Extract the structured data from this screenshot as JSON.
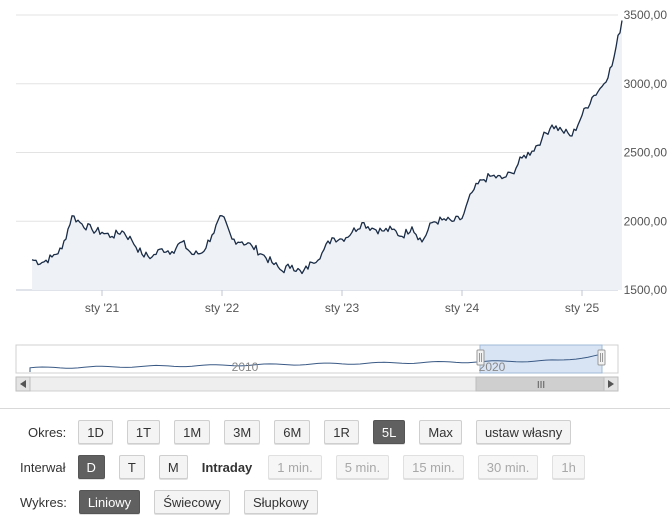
{
  "chart": {
    "y_axis_labels": [
      "3500,00",
      "3000,00",
      "2500,00",
      "2000,00",
      "1500,00"
    ],
    "x_axis_labels": [
      "sty '21",
      "sty '22",
      "sty '23",
      "sty '24",
      "sty '25"
    ],
    "navigator_labels": [
      "2010",
      "2020"
    ],
    "navigator_scroll_grip": "III",
    "colors": {
      "line": "#1a2c46",
      "area": "#eef1f6",
      "grid": "#e3e3e3",
      "navigator_mask": "#c7d9f0"
    }
  },
  "chart_data": {
    "type": "area",
    "title": "",
    "xlabel": "",
    "ylabel": "",
    "x_tick_labels": [
      "sty '21",
      "sty '22",
      "sty '23",
      "sty '24",
      "sty '25"
    ],
    "y_tick_labels": [
      "1500,00",
      "2000,00",
      "2500,00",
      "3000,00",
      "3500,00"
    ],
    "ylim": [
      1500,
      3500
    ],
    "xlim": [
      "2020-06",
      "2025-05"
    ],
    "grid": true,
    "legend": "none",
    "series": [
      {
        "x": [
          "2020-06",
          "2020-07",
          "2020-08",
          "2020-09",
          "2020-10",
          "2020-11",
          "2020-12",
          "2021-01",
          "2021-02",
          "2021-03",
          "2021-04",
          "2021-05",
          "2021-06",
          "2021-07",
          "2021-08",
          "2021-09",
          "2021-10",
          "2021-11",
          "2021-12",
          "2022-01",
          "2022-02",
          "2022-03",
          "2022-04",
          "2022-05",
          "2022-06",
          "2022-07",
          "2022-08",
          "2022-09",
          "2022-10",
          "2022-11",
          "2022-12",
          "2023-01",
          "2023-02",
          "2023-03",
          "2023-04",
          "2023-05",
          "2023-06",
          "2023-07",
          "2023-08",
          "2023-09",
          "2023-10",
          "2023-11",
          "2023-12",
          "2024-01",
          "2024-02",
          "2024-03",
          "2024-04",
          "2024-05",
          "2024-06",
          "2024-07",
          "2024-08",
          "2024-09",
          "2024-10",
          "2024-11",
          "2024-12",
          "2025-01",
          "2025-02",
          "2025-03",
          "2025-04",
          "2025-05"
        ],
        "values": [
          1720,
          1700,
          1740,
          1800,
          2040,
          1980,
          1940,
          1920,
          1890,
          1930,
          1860,
          1760,
          1740,
          1800,
          1780,
          1850,
          1760,
          1770,
          1900,
          2040,
          1870,
          1850,
          1820,
          1760,
          1700,
          1640,
          1680,
          1620,
          1700,
          1770,
          1880,
          1870,
          1920,
          1990,
          1950,
          1930,
          1940,
          1890,
          1960,
          1850,
          1990,
          2010,
          2000,
          2020,
          2210,
          2300,
          2330,
          2310,
          2350,
          2460,
          2510,
          2600,
          2700,
          2660,
          2620,
          2770,
          2900,
          2980,
          3130,
          3460
        ]
      }
    ],
    "navigator": {
      "x_tick_labels": [
        "2010",
        "2020"
      ],
      "selected_range": [
        "2020-06",
        "2025-05"
      ]
    }
  },
  "controls": {
    "period": {
      "label": "Okres:",
      "buttons": [
        "1D",
        "1T",
        "1M",
        "3M",
        "6M",
        "1R",
        "5L",
        "Max",
        "ustaw własny"
      ],
      "active": "5L"
    },
    "interval": {
      "label": "Interwał",
      "buttons": [
        "D",
        "T",
        "M"
      ],
      "active": "D",
      "intraday_label": "Intraday",
      "intraday_buttons": [
        "1 min.",
        "5 min.",
        "15 min.",
        "30 min.",
        "1h"
      ]
    },
    "chart_type": {
      "label": "Wykres:",
      "buttons": [
        "Liniowy",
        "Świecowy",
        "Słupkowy"
      ],
      "active": "Liniowy"
    }
  }
}
